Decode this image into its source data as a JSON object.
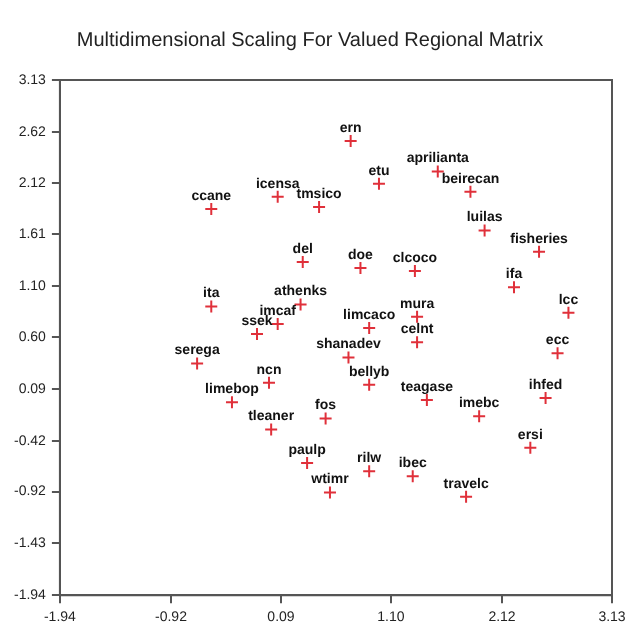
{
  "chart_data": {
    "type": "scatter",
    "title": "Multidimensional Scaling For Valued Regional Matrix",
    "marker": "cross",
    "grid": false,
    "legend": false,
    "xlim": [
      -1.94,
      3.13
    ],
    "ylim": [
      -1.94,
      3.13
    ],
    "xticks": [
      -1.94,
      -0.92,
      0.09,
      {
        "value": 1.1,
        "label": "1.10"
      },
      2.12,
      3.13
    ],
    "yticks": [
      -1.94,
      -1.43,
      -0.92,
      -0.42,
      0.09,
      {
        "value": 0.6,
        "label": "0.60"
      },
      {
        "value": 1.1,
        "label": "1.10"
      },
      1.61,
      2.12,
      2.62,
      3.13
    ],
    "series": [
      {
        "color": "#e0303a",
        "x": [
          0.73,
          0.99,
          1.53,
          1.83,
          1.96,
          2.46,
          0.06,
          0.44,
          -0.55,
          0.29,
          0.82,
          1.32,
          2.23,
          2.73,
          -0.55,
          0.27,
          0.06,
          -0.13,
          0.9,
          1.34,
          1.34,
          2.63,
          -0.68,
          0.71,
          -0.02,
          0.9,
          1.43,
          2.52,
          -0.36,
          0.5,
          1.91,
          0.0,
          2.38,
          0.33,
          0.9,
          1.3,
          0.54,
          1.79
        ],
        "values": [
          2.53,
          2.11,
          2.23,
          2.03,
          1.65,
          1.44,
          1.98,
          1.88,
          1.86,
          1.34,
          1.28,
          1.25,
          1.09,
          0.84,
          0.9,
          0.92,
          0.73,
          0.63,
          0.69,
          0.8,
          0.55,
          0.44,
          0.34,
          0.4,
          0.15,
          0.13,
          -0.02,
          0.0,
          -0.04,
          -0.2,
          -0.18,
          -0.31,
          -0.49,
          -0.64,
          -0.72,
          -0.77,
          -0.93,
          -0.97
        ]
      }
    ],
    "annotations": [
      {
        "text": "ern",
        "x": 0.73,
        "y": 2.53
      },
      {
        "text": "etu",
        "x": 0.99,
        "y": 2.11
      },
      {
        "text": "aprilianta",
        "x": 1.53,
        "y": 2.23
      },
      {
        "text": "beirecan",
        "x": 1.83,
        "y": 2.03
      },
      {
        "text": "luilas",
        "x": 1.96,
        "y": 1.65
      },
      {
        "text": "fisheries",
        "x": 2.46,
        "y": 1.44
      },
      {
        "text": "icensa",
        "x": 0.06,
        "y": 1.98
      },
      {
        "text": "tmsico",
        "x": 0.44,
        "y": 1.88
      },
      {
        "text": "ccane",
        "x": -0.55,
        "y": 1.86
      },
      {
        "text": "del",
        "x": 0.29,
        "y": 1.34
      },
      {
        "text": "doe",
        "x": 0.82,
        "y": 1.28
      },
      {
        "text": "clcoco",
        "x": 1.32,
        "y": 1.25
      },
      {
        "text": "ifa",
        "x": 2.23,
        "y": 1.09
      },
      {
        "text": "lcc",
        "x": 2.73,
        "y": 0.84
      },
      {
        "text": "ita",
        "x": -0.55,
        "y": 0.9
      },
      {
        "text": "athenks",
        "x": 0.27,
        "y": 0.92
      },
      {
        "text": "imcaf",
        "x": 0.06,
        "y": 0.73
      },
      {
        "text": "ssek",
        "x": -0.13,
        "y": 0.63
      },
      {
        "text": "limcaco",
        "x": 0.9,
        "y": 0.69
      },
      {
        "text": "mura",
        "x": 1.34,
        "y": 0.8
      },
      {
        "text": "celnt",
        "x": 1.34,
        "y": 0.55
      },
      {
        "text": "ecc",
        "x": 2.63,
        "y": 0.44
      },
      {
        "text": "serega",
        "x": -0.68,
        "y": 0.34
      },
      {
        "text": "shanadev",
        "x": 0.71,
        "y": 0.4
      },
      {
        "text": "ncn",
        "x": -0.02,
        "y": 0.15
      },
      {
        "text": "bellyb",
        "x": 0.9,
        "y": 0.13
      },
      {
        "text": "teagase",
        "x": 1.43,
        "y": -0.02
      },
      {
        "text": "ihfed",
        "x": 2.52,
        "y": 0.0
      },
      {
        "text": "limebop",
        "x": -0.36,
        "y": -0.04
      },
      {
        "text": "fos",
        "x": 0.5,
        "y": -0.2
      },
      {
        "text": "imebc",
        "x": 1.91,
        "y": -0.18
      },
      {
        "text": "tleaner",
        "x": 0.0,
        "y": -0.31
      },
      {
        "text": "ersi",
        "x": 2.38,
        "y": -0.49
      },
      {
        "text": "paulp",
        "x": 0.33,
        "y": -0.64
      },
      {
        "text": "rilw",
        "x": 0.9,
        "y": -0.72
      },
      {
        "text": "ibec",
        "x": 1.3,
        "y": -0.77
      },
      {
        "text": "wtimr",
        "x": 0.54,
        "y": -0.93
      },
      {
        "text": "travelc",
        "x": 1.79,
        "y": -0.97
      }
    ]
  }
}
